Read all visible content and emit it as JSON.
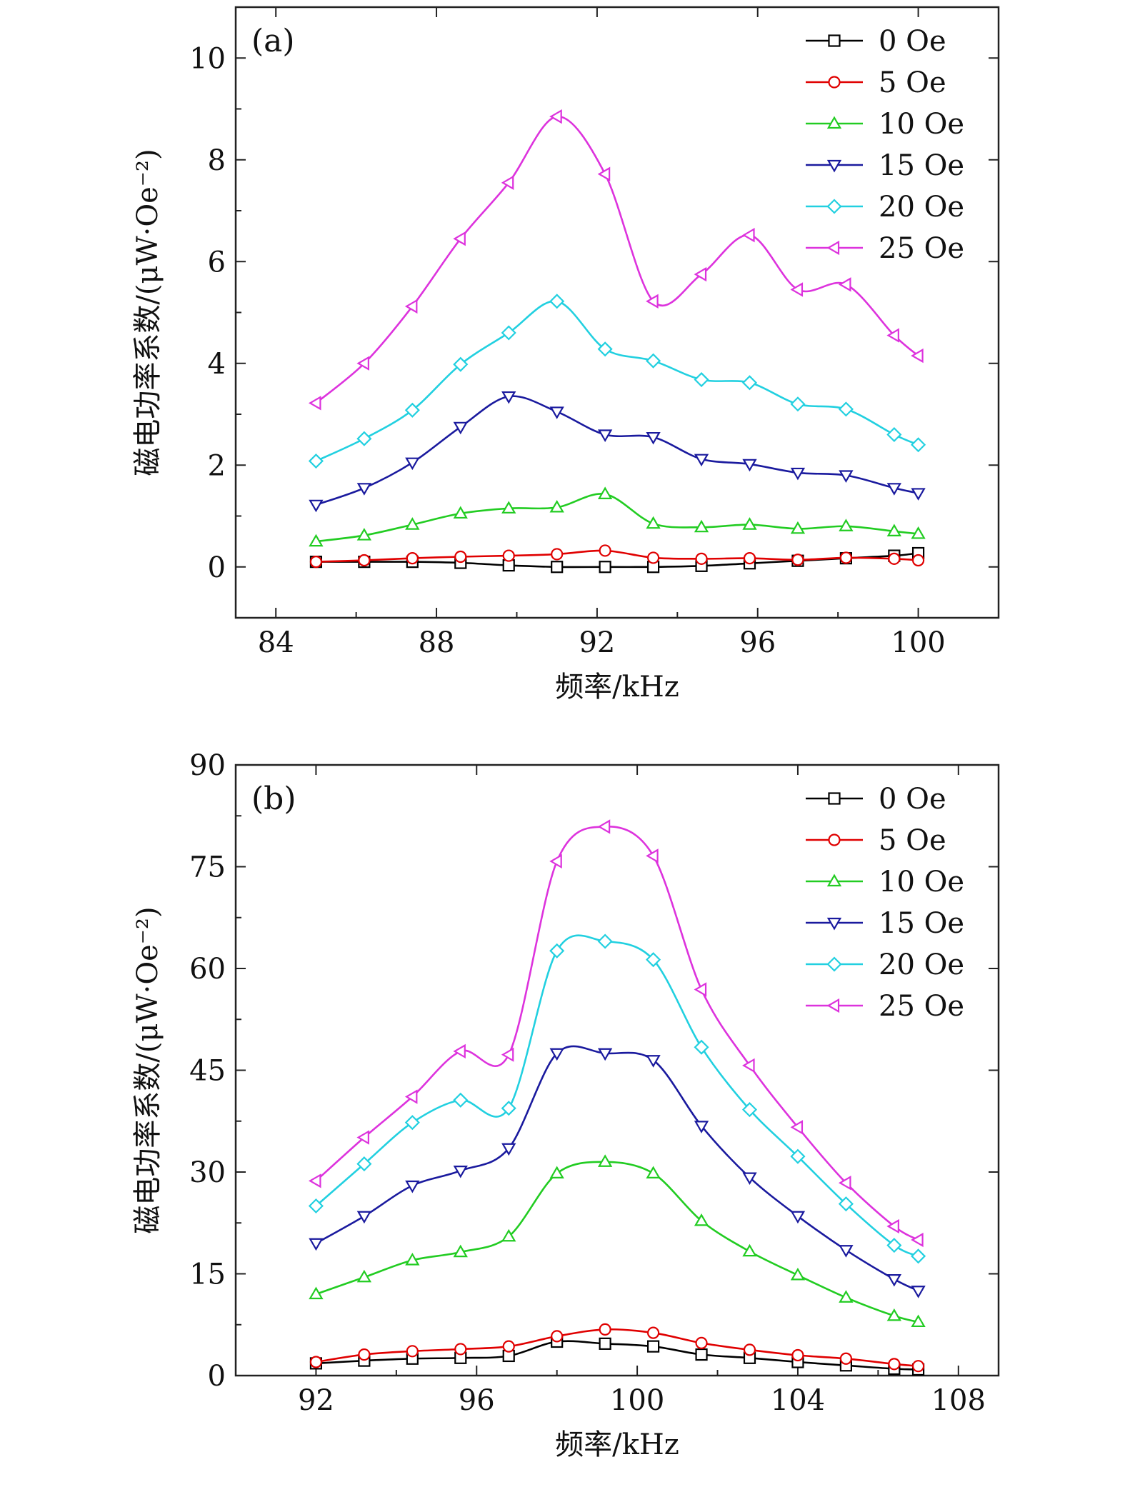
{
  "chart_data": [
    {
      "type": "line",
      "panel": "(a)",
      "xlabel": "频率/kHz",
      "ylabel": "磁电功率系数/(μW·Oe⁻²)",
      "xlim": [
        83,
        102
      ],
      "ylim": [
        -1,
        11
      ],
      "xticks": [
        84,
        88,
        92,
        96,
        100
      ],
      "yticks": [
        0,
        2,
        4,
        6,
        8,
        10
      ],
      "legend_position": "top-right",
      "x": [
        85,
        86.2,
        87.4,
        88.6,
        89.8,
        91,
        92.2,
        93.4,
        94.6,
        95.8,
        97,
        98.2,
        99.4,
        100
      ],
      "series": [
        {
          "name": "0 Oe",
          "color": "#000000",
          "marker": "square",
          "values": [
            0.1,
            0.1,
            0.1,
            0.08,
            0.03,
            0.0,
            0.0,
            0.0,
            0.02,
            0.07,
            0.12,
            0.17,
            0.22,
            0.27
          ]
        },
        {
          "name": "5 Oe",
          "color": "#e00000",
          "marker": "circle",
          "values": [
            0.1,
            0.13,
            0.17,
            0.2,
            0.22,
            0.25,
            0.32,
            0.18,
            0.16,
            0.17,
            0.14,
            0.18,
            0.16,
            0.13
          ]
        },
        {
          "name": "10 Oe",
          "color": "#22cc22",
          "marker": "triangle-up",
          "values": [
            0.5,
            0.62,
            0.83,
            1.05,
            1.15,
            1.17,
            1.43,
            0.85,
            0.78,
            0.83,
            0.75,
            0.8,
            0.7,
            0.65
          ]
        },
        {
          "name": "15 Oe",
          "color": "#1a1a9e",
          "marker": "triangle-down",
          "values": [
            1.22,
            1.55,
            2.05,
            2.75,
            3.35,
            3.05,
            2.6,
            2.55,
            2.12,
            2.02,
            1.85,
            1.8,
            1.55,
            1.45
          ]
        },
        {
          "name": "20 Oe",
          "color": "#22d0e0",
          "marker": "diamond",
          "values": [
            2.08,
            2.52,
            3.08,
            3.98,
            4.6,
            5.22,
            4.28,
            4.05,
            3.68,
            3.62,
            3.2,
            3.1,
            2.6,
            2.4
          ]
        },
        {
          "name": "25 Oe",
          "color": "#dd33dd",
          "marker": "triangle-left",
          "values": [
            3.22,
            4.0,
            5.12,
            6.45,
            7.55,
            8.85,
            7.72,
            5.22,
            5.75,
            6.52,
            5.45,
            5.55,
            4.55,
            4.15
          ]
        }
      ]
    },
    {
      "type": "line",
      "panel": "(b)",
      "xlabel": "频率/kHz",
      "ylabel": "磁电功率系数/(μW·Oe⁻²)",
      "xlim": [
        90,
        109
      ],
      "ylim": [
        0,
        90
      ],
      "xticks": [
        92,
        96,
        100,
        104,
        108
      ],
      "yticks": [
        0,
        15,
        30,
        45,
        60,
        75,
        90
      ],
      "legend_position": "top-right",
      "x": [
        92,
        93.2,
        94.4,
        95.6,
        96.8,
        98,
        99.2,
        100.4,
        101.6,
        102.8,
        104,
        105.2,
        106.4,
        107
      ],
      "series": [
        {
          "name": "0 Oe",
          "color": "#000000",
          "marker": "square",
          "values": [
            1.8,
            2.2,
            2.5,
            2.6,
            2.9,
            5.0,
            4.7,
            4.3,
            3.1,
            2.6,
            2.0,
            1.5,
            1.0,
            0.9
          ]
        },
        {
          "name": "5 Oe",
          "color": "#e00000",
          "marker": "circle",
          "values": [
            2.0,
            3.1,
            3.6,
            3.9,
            4.3,
            5.8,
            6.8,
            6.3,
            4.8,
            3.8,
            3.0,
            2.5,
            1.7,
            1.4
          ]
        },
        {
          "name": "10 Oe",
          "color": "#22cc22",
          "marker": "triangle-up",
          "values": [
            12.0,
            14.5,
            17.0,
            18.2,
            20.5,
            29.8,
            31.5,
            29.8,
            22.8,
            18.3,
            14.8,
            11.5,
            8.8,
            7.9
          ]
        },
        {
          "name": "15 Oe",
          "color": "#1a1a9e",
          "marker": "triangle-down",
          "values": [
            19.5,
            23.5,
            28.0,
            30.2,
            33.5,
            47.5,
            47.5,
            46.5,
            36.8,
            29.2,
            23.5,
            18.5,
            14.2,
            12.5
          ]
        },
        {
          "name": "20 Oe",
          "color": "#22d0e0",
          "marker": "diamond",
          "values": [
            25.0,
            31.2,
            37.3,
            40.6,
            39.4,
            62.6,
            64.0,
            61.3,
            48.4,
            39.2,
            32.3,
            25.3,
            19.2,
            17.6
          ]
        },
        {
          "name": "25 Oe",
          "color": "#dd33dd",
          "marker": "triangle-left",
          "values": [
            28.7,
            35.1,
            41.1,
            47.8,
            47.3,
            75.8,
            80.9,
            76.6,
            56.9,
            45.7,
            36.6,
            28.4,
            22.0,
            20.0
          ]
        }
      ]
    }
  ]
}
